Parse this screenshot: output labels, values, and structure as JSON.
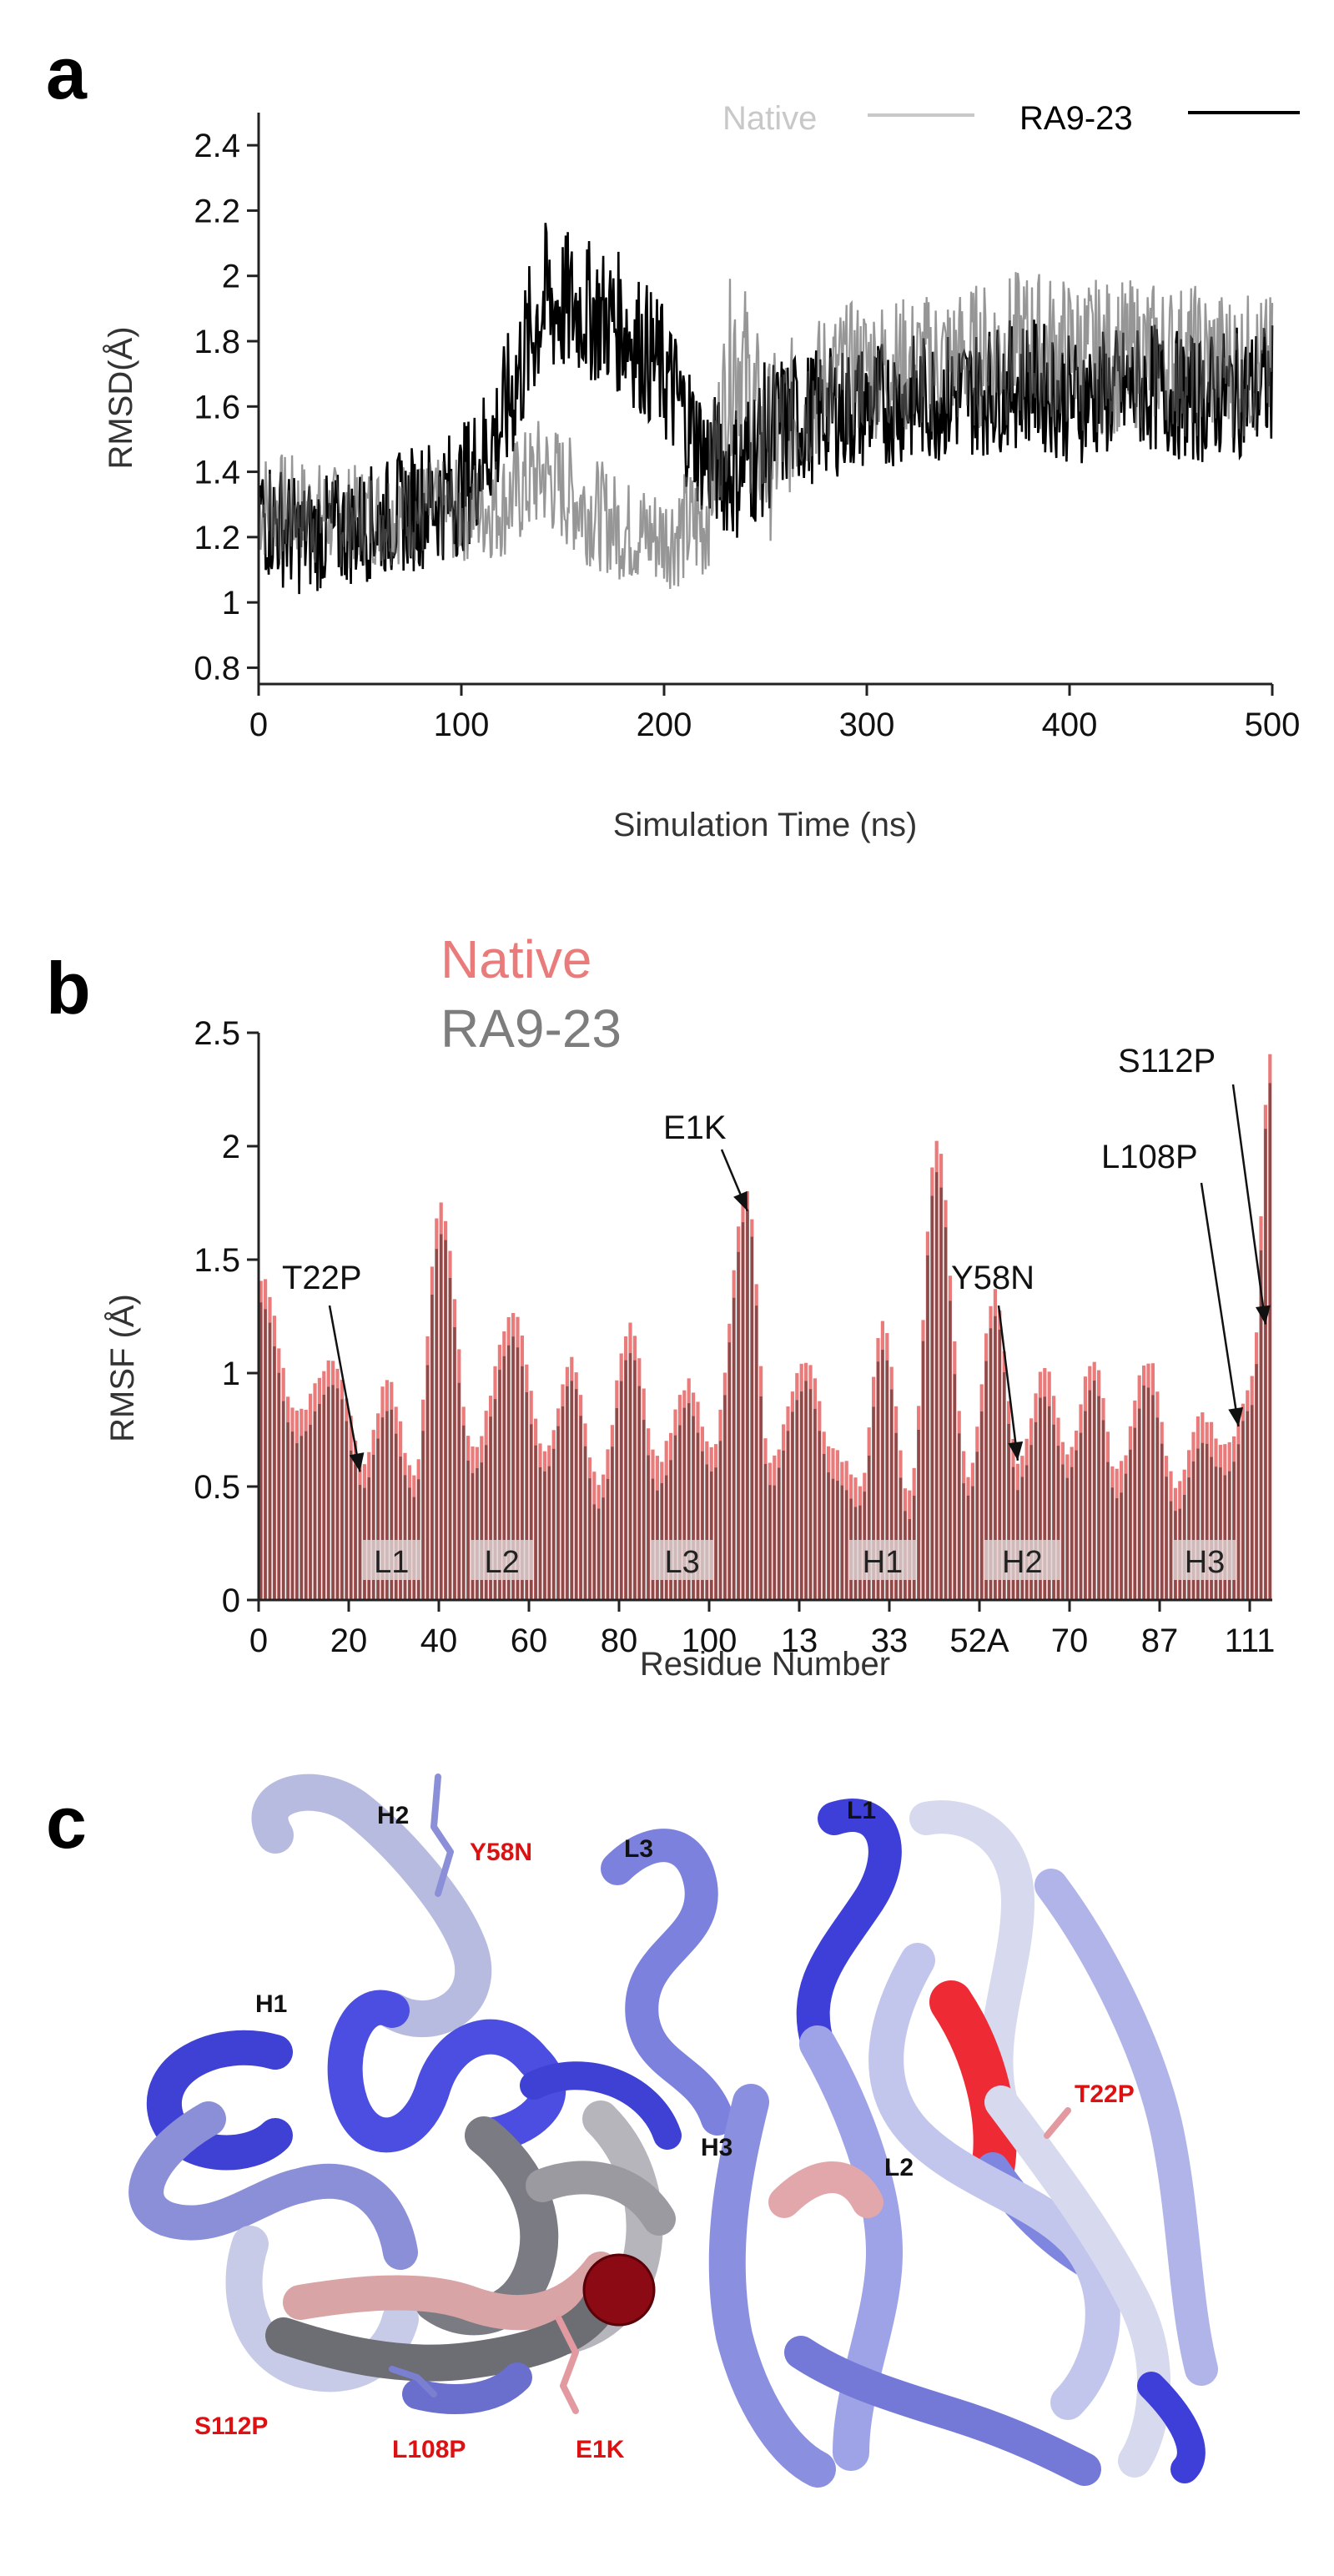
{
  "colors": {
    "native_a": "#c8c8c8",
    "ra_a": "#000000",
    "overlap_a": "#6e6e6e",
    "native_b": "#ea7b7b",
    "ra_b": "#7d7d7d",
    "bar_b": "#8a4b4b",
    "tube_blue": "#7f86e0",
    "tube_dark": "#3d3fd8",
    "tube_white": "#e6e8f5",
    "tube_gray": "#8f9096",
    "tube_red": "#ee2b35"
  },
  "panels": {
    "a": "a",
    "b": "b",
    "c": "c"
  },
  "chart_data": [
    {
      "type": "line",
      "panel": "a",
      "xlabel": "Simulation Time (ns)",
      "ylabel": "RMSD(Å)",
      "xlim": [
        0,
        500
      ],
      "ylim": [
        0.75,
        2.5
      ],
      "xticks": [
        "0",
        "100",
        "200",
        "300",
        "400",
        "500"
      ],
      "xtick_values": [
        0,
        100,
        200,
        300,
        400,
        500
      ],
      "yticks": [
        "0.8",
        "1",
        "1.2",
        "1.4",
        "1.6",
        "1.8",
        "2",
        "2.2",
        "2.4"
      ],
      "ytick_values": [
        0.8,
        1.0,
        1.2,
        1.4,
        1.6,
        1.8,
        2.0,
        2.2,
        2.4
      ],
      "legend": [
        "Native",
        "RA9-23"
      ],
      "legend_position": "top-right",
      "series": [
        {
          "name": "Native",
          "x": [
            0,
            20,
            40,
            60,
            80,
            100,
            120,
            140,
            160,
            180,
            200,
            220,
            235,
            250,
            260,
            280,
            300,
            320,
            340,
            360,
            380,
            400,
            420,
            440,
            460,
            480,
            500
          ],
          "mean": [
            1.3,
            1.28,
            1.26,
            1.27,
            1.28,
            1.28,
            1.3,
            1.4,
            1.3,
            1.22,
            1.2,
            1.25,
            1.8,
            1.45,
            1.55,
            1.68,
            1.72,
            1.72,
            1.74,
            1.76,
            1.78,
            1.76,
            1.75,
            1.76,
            1.74,
            1.73,
            1.72
          ],
          "amp": [
            0.18,
            0.17,
            0.16,
            0.16,
            0.16,
            0.16,
            0.17,
            0.18,
            0.18,
            0.16,
            0.16,
            0.2,
            0.3,
            0.3,
            0.25,
            0.22,
            0.22,
            0.22,
            0.22,
            0.23,
            0.25,
            0.24,
            0.24,
            0.23,
            0.24,
            0.23,
            0.22
          ]
        },
        {
          "name": "RA9-23",
          "x": [
            0,
            20,
            40,
            60,
            80,
            100,
            120,
            140,
            160,
            180,
            200,
            220,
            235,
            250,
            260,
            280,
            300,
            320,
            340,
            360,
            380,
            400,
            420,
            440,
            460,
            480,
            500
          ],
          "mean": [
            1.28,
            1.2,
            1.22,
            1.25,
            1.3,
            1.34,
            1.55,
            1.92,
            1.9,
            1.85,
            1.7,
            1.45,
            1.4,
            1.5,
            1.55,
            1.58,
            1.6,
            1.62,
            1.63,
            1.65,
            1.68,
            1.62,
            1.64,
            1.66,
            1.62,
            1.64,
            1.66
          ],
          "amp": [
            0.2,
            0.18,
            0.18,
            0.18,
            0.2,
            0.2,
            0.22,
            0.25,
            0.22,
            0.22,
            0.22,
            0.2,
            0.22,
            0.24,
            0.22,
            0.2,
            0.2,
            0.2,
            0.2,
            0.2,
            0.2,
            0.2,
            0.2,
            0.2,
            0.2,
            0.2,
            0.2
          ]
        }
      ]
    },
    {
      "type": "bar",
      "panel": "b",
      "xlabel": "Residue Number",
      "ylabel": "RMSF (Å)",
      "ylim": [
        0,
        2.5
      ],
      "yticks": [
        "0",
        "0.5",
        "1",
        "1.5",
        "2",
        "2.5"
      ],
      "ytick_values": [
        0,
        0.5,
        1.0,
        1.5,
        2.0,
        2.5
      ],
      "xticks": [
        "0",
        "20",
        "40",
        "60",
        "80",
        "100",
        "13",
        "33",
        "52A",
        "70",
        "87",
        "111"
      ],
      "xtick_index": [
        0,
        20,
        40,
        60,
        80,
        100,
        120,
        140,
        160,
        180,
        200,
        220
      ],
      "n_residues": 225,
      "legend": [
        "Native",
        "RA9-23"
      ],
      "legend_position": "top-left",
      "peaks": [
        {
          "i": 0,
          "v": 1.35
        },
        {
          "i": 8,
          "v": 0.75
        },
        {
          "i": 16,
          "v": 1.0
        },
        {
          "i": 23,
          "v": 0.55
        },
        {
          "i": 28,
          "v": 0.9
        },
        {
          "i": 34,
          "v": 0.5
        },
        {
          "i": 40,
          "v": 1.68
        },
        {
          "i": 47,
          "v": 0.6
        },
        {
          "i": 56,
          "v": 1.2
        },
        {
          "i": 63,
          "v": 0.6
        },
        {
          "i": 69,
          "v": 1.0
        },
        {
          "i": 75,
          "v": 0.45
        },
        {
          "i": 82,
          "v": 1.15
        },
        {
          "i": 88,
          "v": 0.55
        },
        {
          "i": 95,
          "v": 0.9
        },
        {
          "i": 100,
          "v": 0.6
        },
        {
          "i": 108,
          "v": 1.75
        },
        {
          "i": 113,
          "v": 0.55
        },
        {
          "i": 121,
          "v": 1.0
        },
        {
          "i": 127,
          "v": 0.6
        },
        {
          "i": 133,
          "v": 0.45
        },
        {
          "i": 138,
          "v": 1.15
        },
        {
          "i": 144,
          "v": 0.4
        },
        {
          "i": 150,
          "v": 1.95
        },
        {
          "i": 157,
          "v": 0.5
        },
        {
          "i": 163,
          "v": 1.3
        },
        {
          "i": 168,
          "v": 0.55
        },
        {
          "i": 174,
          "v": 0.95
        },
        {
          "i": 179,
          "v": 0.6
        },
        {
          "i": 185,
          "v": 1.0
        },
        {
          "i": 190,
          "v": 0.5
        },
        {
          "i": 197,
          "v": 1.0
        },
        {
          "i": 203,
          "v": 0.45
        },
        {
          "i": 209,
          "v": 0.75
        },
        {
          "i": 214,
          "v": 0.6
        },
        {
          "i": 220,
          "v": 0.9
        },
        {
          "i": 224,
          "v": 2.32
        }
      ],
      "annotations": [
        {
          "label": "T22P",
          "i": 22,
          "v": 0.55
        },
        {
          "label": "E1K",
          "i": 108,
          "v": 1.7
        },
        {
          "label": "Y58N",
          "i": 168,
          "v": 0.6
        },
        {
          "label": "L108P",
          "i": 217,
          "v": 0.75
        },
        {
          "label": "S112P",
          "i": 223,
          "v": 1.2
        }
      ],
      "regions": [
        {
          "label": "L1",
          "start": 23,
          "end": 36
        },
        {
          "label": "L2",
          "start": 47,
          "end": 61
        },
        {
          "label": "L3",
          "start": 87,
          "end": 101
        },
        {
          "label": "H1",
          "start": 131,
          "end": 146
        },
        {
          "label": "H2",
          "start": 161,
          "end": 178
        },
        {
          "label": "H3",
          "start": 203,
          "end": 217
        }
      ]
    }
  ],
  "structure": {
    "heavy_labels": [
      "H2",
      "H1",
      "H3"
    ],
    "light_labels": [
      "L3",
      "L1",
      "L2"
    ],
    "mutations": [
      "Y58N",
      "T22P",
      "S112P",
      "L108P",
      "E1K"
    ]
  }
}
